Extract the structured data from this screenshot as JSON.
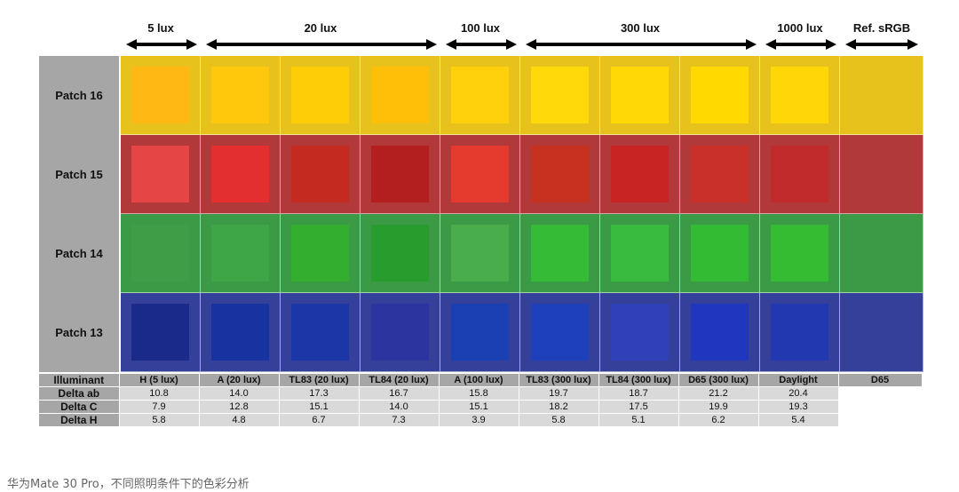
{
  "lux_groups": [
    {
      "label": "5 lux"
    },
    {
      "label": "20 lux"
    },
    {
      "label": "100 lux"
    },
    {
      "label": "300 lux"
    },
    {
      "label": "1000 lux"
    },
    {
      "label": "Ref. sRGB"
    }
  ],
  "patches": [
    {
      "label": "Patch 16",
      "bg": "#e8c21c",
      "squares": [
        "#ffb814",
        "#ffc80c",
        "#ffcd08",
        "#ffbf08",
        "#ffd10c",
        "#ffd90a",
        "#ffd806",
        "#ffd900",
        "#ffd608",
        "#e8c21c"
      ]
    },
    {
      "label": "Patch 15",
      "bg": "#b13939",
      "squares": [
        "#e64545",
        "#e32f2f",
        "#c42a1f",
        "#b31f1f",
        "#e53b2f",
        "#c6321f",
        "#c82424",
        "#c9302a",
        "#c22b2b",
        "#b13939"
      ]
    },
    {
      "label": "Patch 14",
      "bg": "#3a9a45",
      "squares": [
        "#3d9e47",
        "#3ea647",
        "#33ae2f",
        "#289c2c",
        "#4aad4c",
        "#36bb36",
        "#39bc3e",
        "#33bb33",
        "#36bc33",
        "#3a9a45"
      ]
    },
    {
      "label": "Patch 13",
      "bg": "#35409a",
      "squares": [
        "#1a2a8a",
        "#16339f",
        "#1b36a6",
        "#2a359f",
        "#1a40b4",
        "#1e40bb",
        "#3040b8",
        "#1f37bf",
        "#2138b0",
        "#35409a"
      ]
    }
  ],
  "table": {
    "rows": [
      {
        "label": "Illuminant",
        "values": [
          "H (5 lux)",
          "A (20 lux)",
          "TL83 (20 lux)",
          "TL84 (20 lux)",
          "A (100 lux)",
          "TL83 (300 lux)",
          "TL84 (300 lux)",
          "D65 (300 lux)",
          "Daylight",
          "D65"
        ]
      },
      {
        "label": "Delta ab",
        "values": [
          "10.8",
          "14.0",
          "17.3",
          "16.7",
          "15.8",
          "19.7",
          "18.7",
          "21.2",
          "20.4",
          ""
        ]
      },
      {
        "label": "Delta C",
        "values": [
          "7.9",
          "12.8",
          "15.1",
          "14.0",
          "15.1",
          "18.2",
          "17.5",
          "19.9",
          "19.3",
          ""
        ]
      },
      {
        "label": "Delta H",
        "values": [
          "5.8",
          "4.8",
          "6.7",
          "7.3",
          "3.9",
          "5.8",
          "5.1",
          "6.2",
          "5.4",
          ""
        ]
      }
    ]
  },
  "caption": "华为Mate 30 Pro，不同照明条件下的色彩分析"
}
